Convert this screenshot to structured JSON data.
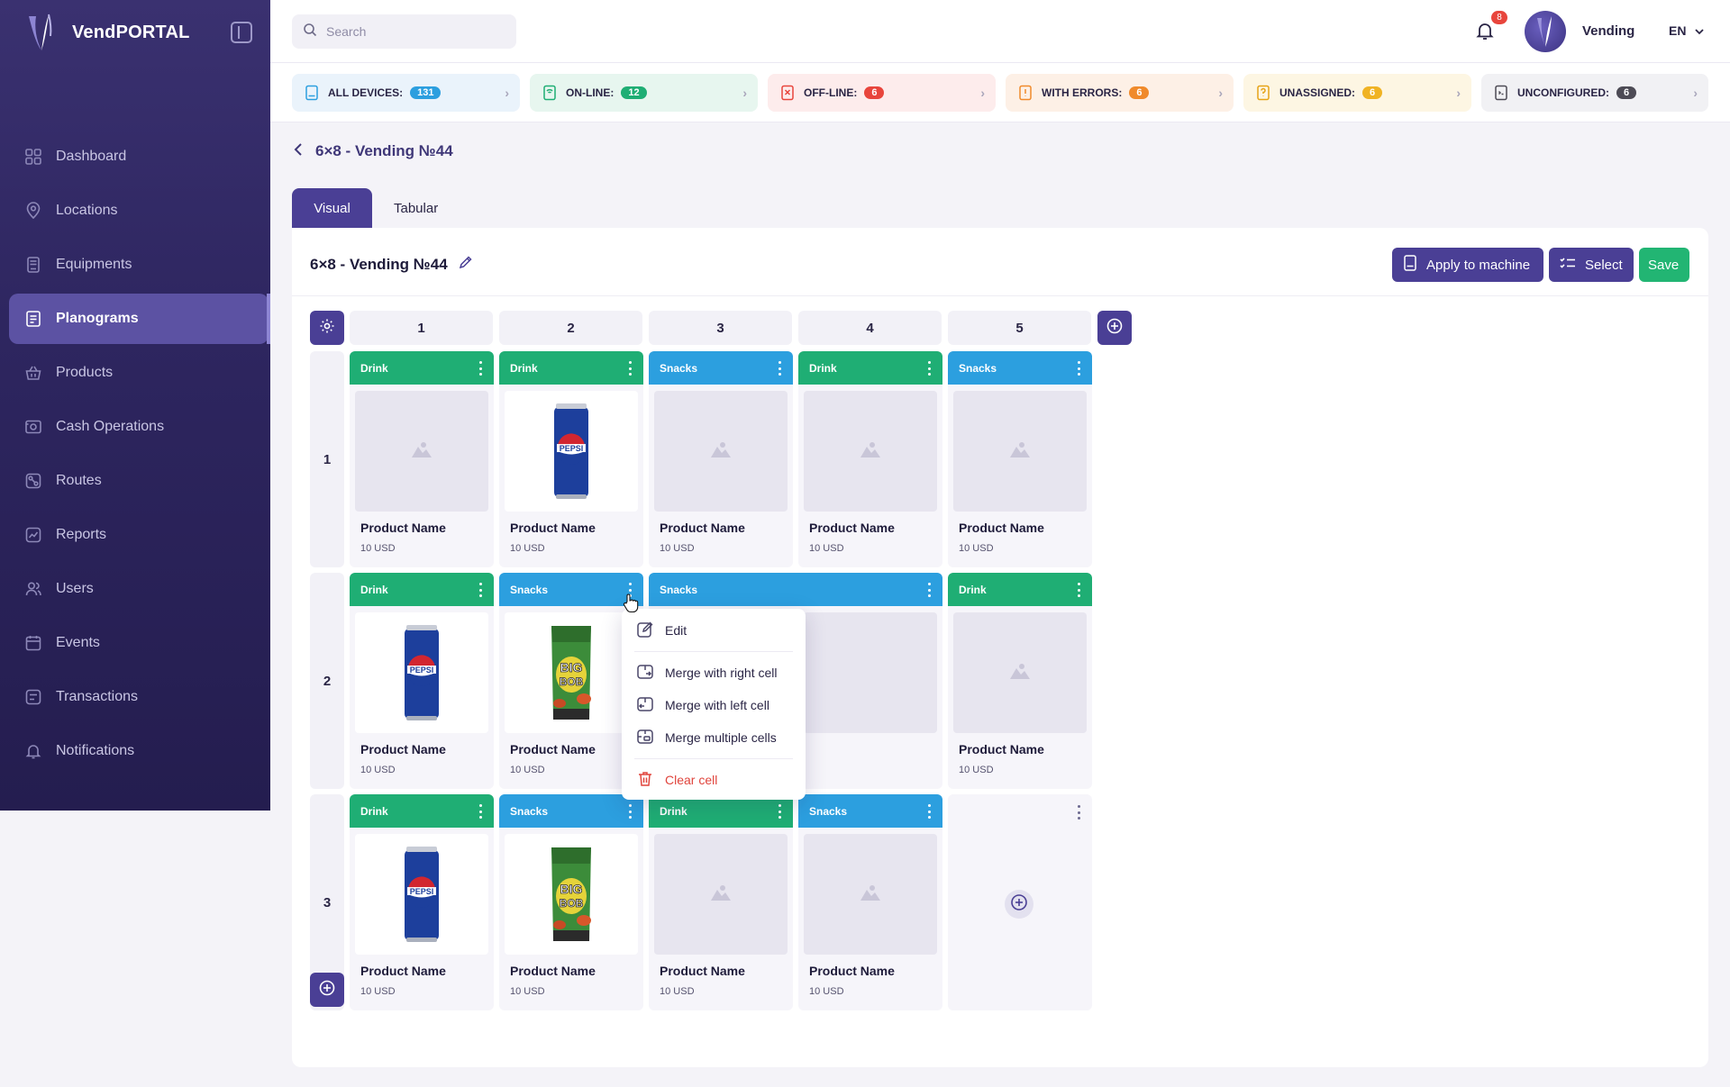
{
  "app": {
    "name": "VendPORTAL"
  },
  "sidebar": {
    "items": [
      {
        "label": "Dashboard",
        "icon": "dashboard-icon"
      },
      {
        "label": "Locations",
        "icon": "location-pin-icon"
      },
      {
        "label": "Equipments",
        "icon": "vending-machine-icon"
      },
      {
        "label": "Planograms",
        "icon": "planogram-icon",
        "active": true
      },
      {
        "label": "Products",
        "icon": "basket-icon"
      },
      {
        "label": "Cash Operations",
        "icon": "cash-icon"
      },
      {
        "label": "Routes",
        "icon": "route-icon"
      },
      {
        "label": "Reports",
        "icon": "report-icon"
      },
      {
        "label": "Users",
        "icon": "users-icon"
      },
      {
        "label": "Events",
        "icon": "calendar-icon"
      },
      {
        "label": "Transactions",
        "icon": "transactions-icon"
      },
      {
        "label": "Notifications",
        "icon": "bell-icon"
      }
    ]
  },
  "topbar": {
    "search_placeholder": "Search",
    "notification_count": "8",
    "user_name": "Vending",
    "language": "EN"
  },
  "status": [
    {
      "label": "ALL DEVICES:",
      "count": "131",
      "bg": "#eaf3fb",
      "badge": "#2c9fdf",
      "icon": "devices-icon"
    },
    {
      "label": "ON-LINE:",
      "count": "12",
      "bg": "#e7f6ef",
      "badge": "#1fae74",
      "icon": "online-icon"
    },
    {
      "label": "OFF-LINE:",
      "count": "6",
      "bg": "#fdecec",
      "badge": "#e8453c",
      "icon": "offline-icon"
    },
    {
      "label": "WITH ERRORS:",
      "count": "6",
      "bg": "#fdf0e6",
      "badge": "#f08a2b",
      "icon": "error-icon"
    },
    {
      "label": "UNASSIGNED:",
      "count": "6",
      "bg": "#fdf6e3",
      "badge": "#f0b323",
      "icon": "unassigned-icon"
    },
    {
      "label": "UNCONFIGURED:",
      "count": "6",
      "bg": "#f1f1f4",
      "badge": "#4d4b55",
      "icon": "unconfigured-icon"
    }
  ],
  "page": {
    "breadcrumb": "6×8 - Vending №44",
    "tabs": [
      "Visual",
      "Tabular"
    ],
    "title": "6×8 - Vending №44",
    "buttons": {
      "apply": "Apply to machine",
      "select": "Select",
      "save": "Save"
    }
  },
  "grid": {
    "columns": [
      "1",
      "2",
      "3",
      "4",
      "5"
    ],
    "rows": [
      "1",
      "2",
      "3"
    ],
    "cells": [
      {
        "cat": "Drink",
        "img": "empty",
        "name": "Product Name",
        "price": "10 USD"
      },
      {
        "cat": "Drink",
        "img": "pepsi",
        "name": "Product Name",
        "price": "10 USD"
      },
      {
        "cat": "Snacks",
        "img": "empty",
        "name": "Product Name",
        "price": "10 USD"
      },
      {
        "cat": "Drink",
        "img": "empty",
        "name": "Product Name",
        "price": "10 USD"
      },
      {
        "cat": "Snacks",
        "img": "empty",
        "name": "Product Name",
        "price": "10 USD"
      },
      {
        "cat": "Drink",
        "img": "pepsi",
        "name": "Product Name",
        "price": "10 USD"
      },
      {
        "cat": "Snacks",
        "img": "bigbob",
        "name": "Product Name",
        "price": "10 USD"
      },
      {
        "cat": "Snacks",
        "img": "empty",
        "name": "",
        "price": "",
        "span": 2
      },
      {
        "cat": "Drink",
        "img": "empty",
        "name": "Product Name",
        "price": "10 USD"
      },
      {
        "cat": "Drink",
        "img": "pepsi",
        "name": "Product Name",
        "price": "10 USD"
      },
      {
        "cat": "Snacks",
        "img": "bigbob",
        "name": "Product Name",
        "price": "10 USD"
      },
      {
        "cat": "Drink",
        "img": "empty",
        "name": "Product Name",
        "price": "10 USD"
      },
      {
        "cat": "Snacks",
        "img": "empty",
        "name": "Product Name",
        "price": "10 USD"
      },
      {
        "cat": "",
        "img": "add",
        "name": "",
        "price": ""
      }
    ]
  },
  "context_menu": {
    "items": [
      {
        "label": "Edit",
        "icon": "edit-icon"
      },
      {
        "label": "Merge with right cell",
        "icon": "merge-right-icon"
      },
      {
        "label": "Merge with left cell",
        "icon": "merge-left-icon"
      },
      {
        "label": "Merge multiple cells",
        "icon": "merge-multiple-icon"
      },
      {
        "label": "Clear cell",
        "icon": "trash-icon",
        "danger": true
      }
    ]
  },
  "colors": {
    "primary": "#4a3f95",
    "drink": "#1fae74",
    "snacks": "#2c9fdf",
    "save": "#22b573",
    "danger": "#e0443c"
  }
}
